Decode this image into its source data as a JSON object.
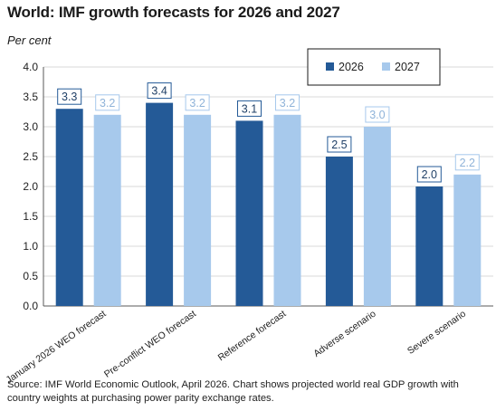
{
  "title": "World: IMF growth forecasts for 2026 and 2027",
  "unit_label": "Per cent",
  "source": "Source: IMF World Economic Outlook, April 2026.  Chart shows projected world real GDP growth with country weights at purchasing power parity exchange rates.",
  "colors": {
    "s2026": "#245a97",
    "s2027": "#a7c9ec",
    "grid": "#d9d9d9",
    "axis": "#595959"
  },
  "chart_data": {
    "type": "bar",
    "title": "World: IMF growth forecasts for 2026 and 2027",
    "ylabel": "Per cent",
    "ylim": [
      0,
      4
    ],
    "ytick_step": 0.5,
    "grid": true,
    "legend_position": "top-right",
    "categories": [
      "January 2026 WEO forecast",
      "Pre-conflict WEO forecast",
      "Reference forecast",
      "Adverse scenario",
      "Severe scenario"
    ],
    "series": [
      {
        "name": "2026",
        "values": [
          3.3,
          3.4,
          3.1,
          2.5,
          2.0
        ],
        "labels": [
          "3.3",
          "3.4",
          "3.1",
          "2.5",
          "2.0"
        ]
      },
      {
        "name": "2027",
        "values": [
          3.2,
          3.2,
          3.2,
          3.0,
          2.2
        ],
        "labels": [
          "3.2",
          "3.2",
          "3.2",
          "3.0",
          "2.2"
        ]
      }
    ]
  }
}
